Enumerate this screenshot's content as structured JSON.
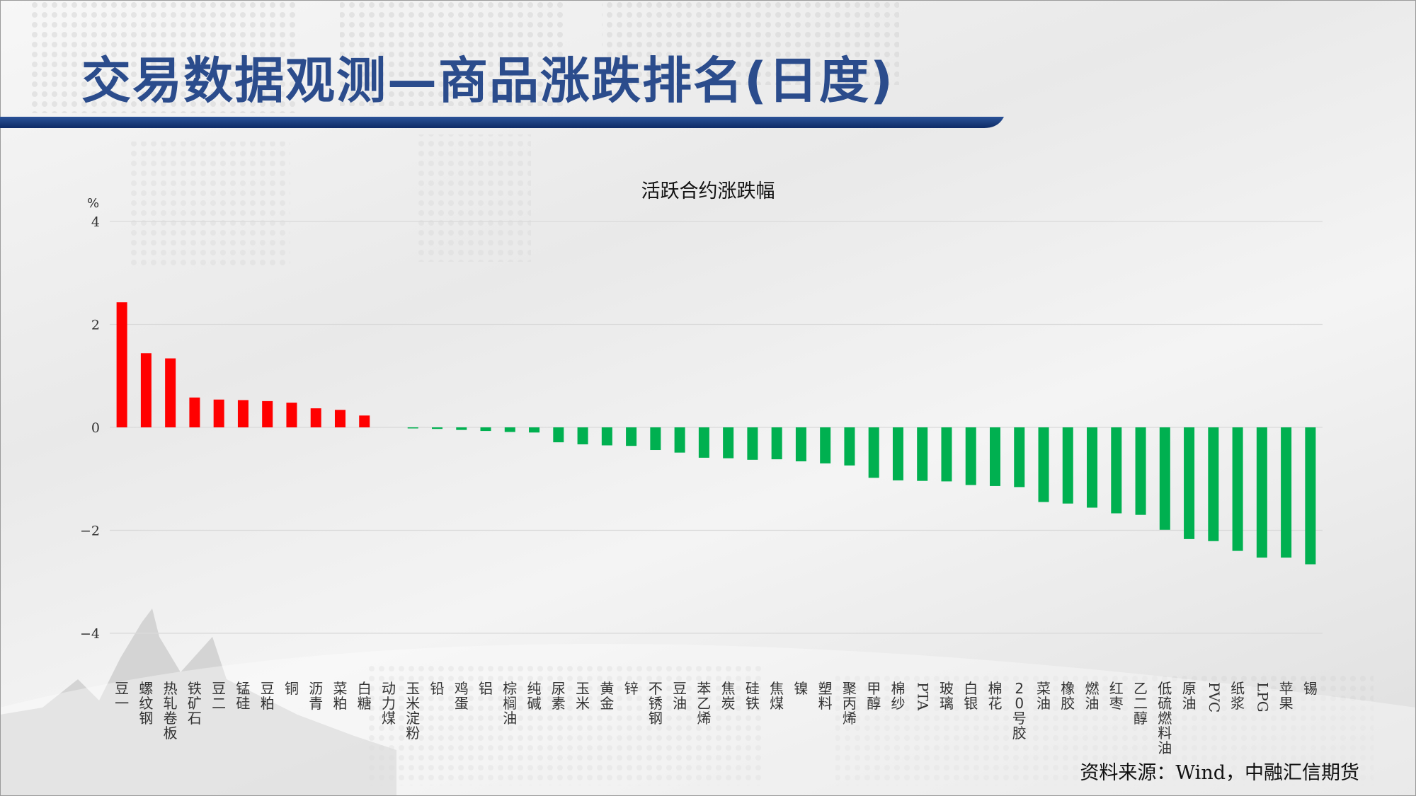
{
  "page": {
    "title": "交易数据观测—商品涨跌排名(日度)",
    "source": "资料来源：Wind，中融汇信期货",
    "colors": {
      "title": "#2b4c8c",
      "bar_title": "#173d84",
      "up": "#ff0000",
      "down": "#00b050"
    }
  },
  "chart_data": {
    "type": "bar",
    "title": "活跃合约涨跌幅",
    "ylabel": "%",
    "ylim": [
      -4,
      4
    ],
    "yticks": [
      4,
      2,
      0,
      -2,
      -4
    ],
    "ytick_labels": [
      "4",
      "2",
      "0",
      "−2",
      "−4"
    ],
    "grid": true,
    "categories": [
      "豆一",
      "螺纹钢",
      "热轧卷板",
      "铁矿石",
      "豆二",
      "锰硅",
      "豆粕",
      "铜",
      "沥青",
      "菜粕",
      "白糖",
      "动力煤",
      "玉米淀粉",
      "铅",
      "鸡蛋",
      "铝",
      "棕榈油",
      "纯碱",
      "尿素",
      "玉米",
      "黄金",
      "锌",
      "不锈钢",
      "豆油",
      "苯乙烯",
      "焦炭",
      "硅铁",
      "焦煤",
      "镍",
      "塑料",
      "聚丙烯",
      "甲醇",
      "棉纱",
      "PTA",
      "玻璃",
      "白银",
      "棉花",
      "20号胶",
      "菜油",
      "橡胶",
      "燃油",
      "红枣",
      "乙二醇",
      "低硫燃料油",
      "原油",
      "PVC",
      "纸浆",
      "LPG",
      "苹果",
      "锡"
    ],
    "values": [
      2.43,
      1.44,
      1.34,
      0.58,
      0.54,
      0.53,
      0.51,
      0.48,
      0.37,
      0.34,
      0.23,
      0.0,
      -0.02,
      -0.03,
      -0.05,
      -0.07,
      -0.09,
      -0.1,
      -0.29,
      -0.33,
      -0.35,
      -0.36,
      -0.44,
      -0.49,
      -0.59,
      -0.6,
      -0.63,
      -0.62,
      -0.66,
      -0.7,
      -0.74,
      -0.98,
      -1.03,
      -1.04,
      -1.05,
      -1.12,
      -1.14,
      -1.16,
      -1.45,
      -1.48,
      -1.56,
      -1.67,
      -1.7,
      -1.99,
      -2.17,
      -2.21,
      -2.4,
      -2.53,
      -2.53,
      -2.66
    ]
  }
}
